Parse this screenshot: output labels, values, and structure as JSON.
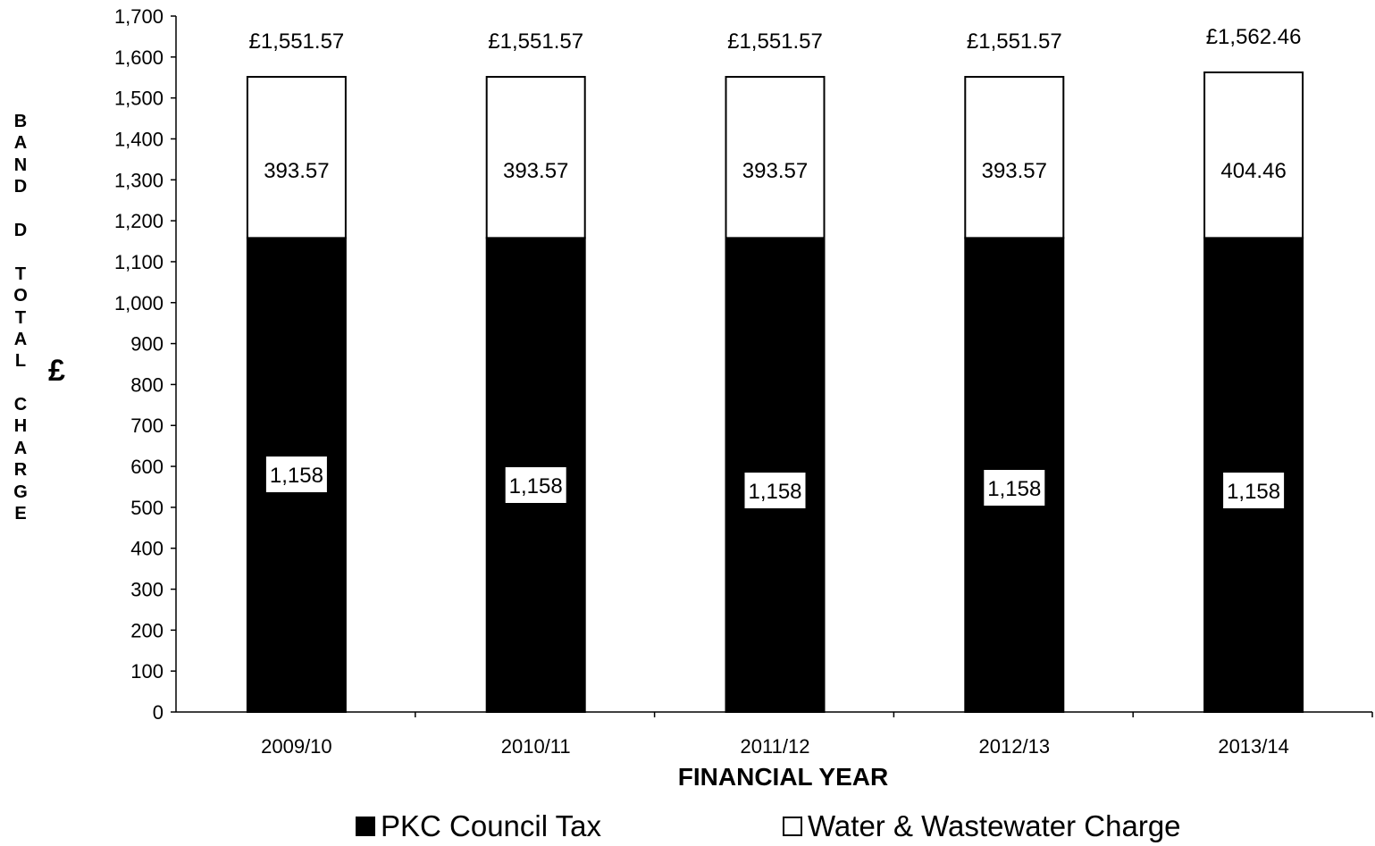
{
  "chart_data": {
    "type": "bar",
    "stacked": true,
    "categories": [
      "2009/10",
      "2010/11",
      "2011/12",
      "2012/13",
      "2013/14"
    ],
    "series": [
      {
        "name": "PKC Council Tax",
        "values": [
          1158,
          1158,
          1158,
          1158,
          1158
        ],
        "color": "#000000",
        "labels": [
          "1,158",
          "1,158",
          "1,158",
          "1,158",
          "1,158"
        ]
      },
      {
        "name": "Water & Wastewater Charge",
        "values": [
          393.57,
          393.57,
          393.57,
          393.57,
          404.46
        ],
        "color": "#ffffff",
        "labels": [
          "393.57",
          "393.57",
          "393.57",
          "393.57",
          "404.46"
        ]
      }
    ],
    "totals": [
      "£1,551.57",
      "£1,551.57",
      "£1,551.57",
      "£1,551.57",
      "£1,562.46"
    ],
    "ylabel": "BAND D TOTAL CHARGE",
    "yunit": "£",
    "xlabel": "FINANCIAL YEAR",
    "ylim": [
      0,
      1700
    ],
    "ytick_step": 100,
    "yticks": [
      "0",
      "100",
      "200",
      "300",
      "400",
      "500",
      "600",
      "700",
      "800",
      "900",
      "1,000",
      "1,100",
      "1,200",
      "1,300",
      "1,400",
      "1,500",
      "1,600",
      "1,700"
    ],
    "grid": false,
    "legend_position": "bottom"
  }
}
